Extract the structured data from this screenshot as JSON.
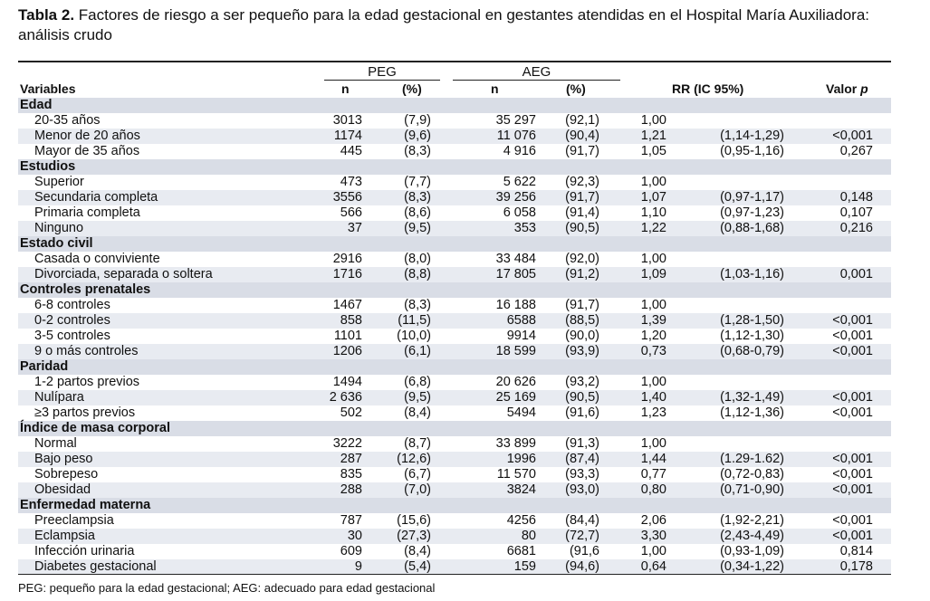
{
  "title": {
    "label": "Tabla 2.",
    "text": "Factores de riesgo a ser pequeño para la edad gestacional en gestantes atendidas en el Hospital María Auxiliadora: análisis crudo"
  },
  "header": {
    "group_peg": "PEG",
    "group_aeg": "AEG",
    "variables": "Variables",
    "n1": "n",
    "p1": "(%)",
    "n2": "n",
    "p2": "(%)",
    "rr": "RR (IC 95%)",
    "valor": "Valor ",
    "valor_p": "p"
  },
  "rows": [
    {
      "type": "section",
      "label": "Edad"
    },
    {
      "type": "data",
      "label": "20-35 años",
      "n1": "3013",
      "p1": "(7,9)",
      "n2": "35 297",
      "p2": "(92,1)",
      "rr": "1,00",
      "ic": "",
      "pv": ""
    },
    {
      "type": "data",
      "label": "Menor de 20 años",
      "n1": "1174",
      "p1": "(9,6)",
      "n2": "11 076",
      "p2": "(90,4)",
      "rr": "1,21",
      "ic": "(1,14-1,29)",
      "pv": "<0,001"
    },
    {
      "type": "data",
      "label": "Mayor de 35 años",
      "n1": "445",
      "p1": "(8,3)",
      "n2": "4 916",
      "p2": "(91,7)",
      "rr": "1,05",
      "ic": "(0,95-1,16)",
      "pv": "0,267"
    },
    {
      "type": "section",
      "label": "Estudios"
    },
    {
      "type": "data",
      "label": "Superior",
      "n1": "473",
      "p1": "(7,7)",
      "n2": "5 622",
      "p2": "(92,3)",
      "rr": "1,00",
      "ic": "",
      "pv": ""
    },
    {
      "type": "data",
      "label": "Secundaria completa",
      "n1": "3556",
      "p1": "(8,3)",
      "n2": "39 256",
      "p2": "(91,7)",
      "rr": "1,07",
      "ic": "(0,97-1,17)",
      "pv": "0,148"
    },
    {
      "type": "data",
      "label": "Primaria completa",
      "n1": "566",
      "p1": "(8,6)",
      "n2": "6 058",
      "p2": "(91,4)",
      "rr": "1,10",
      "ic": "(0,97-1,23)",
      "pv": "0,107"
    },
    {
      "type": "data",
      "label": "Ninguno",
      "n1": "37",
      "p1": "(9,5)",
      "n2": "353",
      "p2": "(90,5)",
      "rr": "1,22",
      "ic": "(0,88-1,68)",
      "pv": "0,216"
    },
    {
      "type": "section",
      "label": "Estado civil"
    },
    {
      "type": "data",
      "label": "Casada o conviviente",
      "n1": "2916",
      "p1": "(8,0)",
      "n2": "33 484",
      "p2": "(92,0)",
      "rr": "1,00",
      "ic": "",
      "pv": ""
    },
    {
      "type": "data",
      "label": "Divorciada, separada o soltera",
      "n1": "1716",
      "p1": "(8,8)",
      "n2": "17 805",
      "p2": "(91,2)",
      "rr": "1,09",
      "ic": "(1,03-1,16)",
      "pv": "0,001"
    },
    {
      "type": "section",
      "label": "Controles prenatales"
    },
    {
      "type": "data",
      "label": "6-8 controles",
      "n1": "1467",
      "p1": "(8,3)",
      "n2": "16 188",
      "p2": "(91,7)",
      "rr": "1,00",
      "ic": "",
      "pv": ""
    },
    {
      "type": "data",
      "label": "0-2 controles",
      "n1": "858",
      "p1": "(11,5)",
      "n2": "6588",
      "p2": "(88,5)",
      "rr": "1,39",
      "ic": "(1,28-1,50)",
      "pv": "<0,001"
    },
    {
      "type": "data",
      "label": "3-5 controles",
      "n1": "1101",
      "p1": "(10,0)",
      "n2": "9914",
      "p2": "(90,0)",
      "rr": "1,20",
      "ic": "(1,12-1,30)",
      "pv": "<0,001"
    },
    {
      "type": "data",
      "label": "9 o más controles",
      "n1": "1206",
      "p1": "(6,1)",
      "n2": "18 599",
      "p2": "(93,9)",
      "rr": "0,73",
      "ic": "(0,68-0,79)",
      "pv": "<0,001"
    },
    {
      "type": "section",
      "label": "Paridad"
    },
    {
      "type": "data",
      "label": "1-2 partos previos",
      "n1": "1494",
      "p1": "(6,8)",
      "n2": "20 626",
      "p2": "(93,2)",
      "rr": "1,00",
      "ic": "",
      "pv": ""
    },
    {
      "type": "data",
      "label": "Nulípara",
      "n1": "2 636",
      "p1": "(9,5)",
      "n2": "25 169",
      "p2": "(90,5)",
      "rr": "1,40",
      "ic": "(1,32-1,49)",
      "pv": "<0,001"
    },
    {
      "type": "data",
      "label": "≥3 partos previos",
      "n1": "502",
      "p1": "(8,4)",
      "n2": "5494",
      "p2": "(91,6)",
      "rr": "1,23",
      "ic": "(1,12-1,36)",
      "pv": "<0,001"
    },
    {
      "type": "section",
      "label": "Índice de masa corporal"
    },
    {
      "type": "data",
      "label": "Normal",
      "n1": "3222",
      "p1": "(8,7)",
      "n2": "33 899",
      "p2": "(91,3)",
      "rr": "1,00",
      "ic": "",
      "pv": ""
    },
    {
      "type": "data",
      "label": "Bajo peso",
      "n1": "287",
      "p1": "(12,6)",
      "n2": "1996",
      "p2": "(87,4)",
      "rr": "1,44",
      "ic": "(1.29-1.62)",
      "pv": "<0,001"
    },
    {
      "type": "data",
      "label": "Sobrepeso",
      "n1": "835",
      "p1": "(6,7)",
      "n2": "11 570",
      "p2": "(93,3)",
      "rr": "0,77",
      "ic": "(0,72-0,83)",
      "pv": "<0,001"
    },
    {
      "type": "data",
      "label": "Obesidad",
      "n1": "288",
      "p1": "(7,0)",
      "n2": "3824",
      "p2": "(93,0)",
      "rr": "0,80",
      "ic": "(0,71-0,90)",
      "pv": "<0,001"
    },
    {
      "type": "section",
      "label": "Enfermedad materna"
    },
    {
      "type": "data",
      "label": "Preeclampsia",
      "n1": "787",
      "p1": "(15,6)",
      "n2": "4256",
      "p2": "(84,4)",
      "rr": "2,06",
      "ic": "(1,92-2,21)",
      "pv": "<0,001"
    },
    {
      "type": "data",
      "label": "Eclampsia",
      "n1": "30",
      "p1": "(27,3)",
      "n2": "80",
      "p2": "(72,7)",
      "rr": "3,30",
      "ic": "(2,43-4,49)",
      "pv": "<0,001"
    },
    {
      "type": "data",
      "label": "Infección urinaria",
      "n1": "609",
      "p1": "(8,4)",
      "n2": "6681",
      "p2": "(91,6",
      "rr": "1,00",
      "ic": "(0,93-1,09)",
      "pv": "0,814"
    },
    {
      "type": "data",
      "label": "Diabetes gestacional",
      "n1": "9",
      "p1": "(5,4)",
      "n2": "159",
      "p2": "(94,6)",
      "rr": "0,64",
      "ic": "(0,34-1,22)",
      "pv": "0,178"
    }
  ],
  "footnote": "PEG: pequeño para la edad gestacional; AEG: adecuado para edad gestacional"
}
